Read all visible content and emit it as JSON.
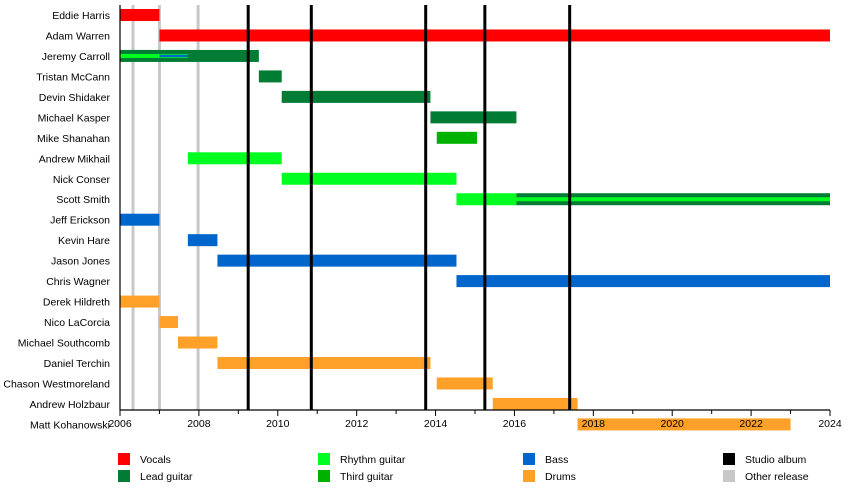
{
  "chart_data": {
    "type": "timeline",
    "x_range": [
      2006,
      2024
    ],
    "x_ticks": [
      2006,
      2008,
      2010,
      2012,
      2014,
      2016,
      2018,
      2020,
      2022,
      2024
    ],
    "colors": {
      "Vocals": "#ff0000",
      "Lead guitar": "#007c35",
      "Rhythm guitar": "#00ff21",
      "Third guitar": "#00b200",
      "Bass": "#0066cc",
      "Drums": "#ffa028",
      "Studio album": "#000000",
      "Other release": "#c8c8c8"
    },
    "members": [
      {
        "name": "Eddie Harris",
        "periods": [
          {
            "role": "Vocals",
            "from": 2006.0,
            "to": 2007.0
          }
        ]
      },
      {
        "name": "Adam Warren",
        "periods": [
          {
            "role": "Vocals",
            "from": 2007.0,
            "to": 2024.0
          }
        ]
      },
      {
        "name": "Jeremy Carroll",
        "periods": [
          {
            "role": "Lead guitar",
            "from": 2006.0,
            "to": 2009.52
          }
        ],
        "stripes": [
          {
            "role": "Rhythm guitar",
            "from": 2006.0,
            "to": 2007.72
          },
          {
            "role": "Bass",
            "from": 2007.0,
            "to": 2007.72
          }
        ]
      },
      {
        "name": "Tristan McCann",
        "periods": [
          {
            "role": "Lead guitar",
            "from": 2009.52,
            "to": 2010.1
          }
        ]
      },
      {
        "name": "Devin Shidaker",
        "periods": [
          {
            "role": "Lead guitar",
            "from": 2010.1,
            "to": 2013.87
          }
        ]
      },
      {
        "name": "Michael Kasper",
        "periods": [
          {
            "role": "Lead guitar",
            "from": 2013.87,
            "to": 2016.05
          }
        ]
      },
      {
        "name": "Mike Shanahan",
        "periods": [
          {
            "role": "Third guitar",
            "from": 2014.03,
            "to": 2015.05
          }
        ]
      },
      {
        "name": "Andrew Mikhail",
        "periods": [
          {
            "role": "Rhythm guitar",
            "from": 2007.72,
            "to": 2010.1
          }
        ]
      },
      {
        "name": "Nick Conser",
        "periods": [
          {
            "role": "Rhythm guitar",
            "from": 2010.1,
            "to": 2014.53
          }
        ]
      },
      {
        "name": "Scott Smith",
        "periods": [
          {
            "role": "Rhythm guitar",
            "from": 2014.53,
            "to": 2016.05
          },
          {
            "role": "Lead guitar",
            "from": 2016.05,
            "to": 2024.0
          }
        ],
        "stripes": [
          {
            "role": "Rhythm guitar",
            "from": 2016.05,
            "to": 2024.0
          }
        ]
      },
      {
        "name": "Jeff Erickson",
        "periods": [
          {
            "role": "Bass",
            "from": 2006.0,
            "to": 2007.0
          }
        ]
      },
      {
        "name": "Kevin Hare",
        "periods": [
          {
            "role": "Bass",
            "from": 2007.72,
            "to": 2008.47
          }
        ]
      },
      {
        "name": "Jason Jones",
        "periods": [
          {
            "role": "Bass",
            "from": 2008.47,
            "to": 2014.53
          }
        ]
      },
      {
        "name": "Chris Wagner",
        "periods": [
          {
            "role": "Bass",
            "from": 2014.53,
            "to": 2024.0
          }
        ]
      },
      {
        "name": "Derek Hildreth",
        "periods": [
          {
            "role": "Drums",
            "from": 2006.0,
            "to": 2007.0
          }
        ]
      },
      {
        "name": "Nico LaCorcia",
        "periods": [
          {
            "role": "Drums",
            "from": 2007.0,
            "to": 2007.47
          }
        ]
      },
      {
        "name": "Michael Southcomb",
        "periods": [
          {
            "role": "Drums",
            "from": 2007.47,
            "to": 2008.47
          }
        ]
      },
      {
        "name": "Daniel Terchin",
        "periods": [
          {
            "role": "Drums",
            "from": 2008.47,
            "to": 2013.87
          }
        ]
      },
      {
        "name": "Chason Westmoreland",
        "periods": [
          {
            "role": "Drums",
            "from": 2014.03,
            "to": 2015.45
          }
        ]
      },
      {
        "name": "Andrew Holzbaur",
        "periods": [
          {
            "role": "Drums",
            "from": 2015.45,
            "to": 2017.6
          }
        ]
      },
      {
        "name": "Matt Kohanowski",
        "periods": [
          {
            "role": "Drums",
            "from": 2017.6,
            "to": 2023.0
          }
        ]
      }
    ],
    "releases": [
      {
        "type": "Other release",
        "date": 2006.33
      },
      {
        "type": "Other release",
        "date": 2007.0
      },
      {
        "type": "Other release",
        "date": 2007.98
      },
      {
        "type": "Studio album",
        "date": 2009.25
      },
      {
        "type": "Studio album",
        "date": 2010.85
      },
      {
        "type": "Studio album",
        "date": 2013.75
      },
      {
        "type": "Studio album",
        "date": 2015.25
      },
      {
        "type": "Studio album",
        "date": 2017.4
      }
    ],
    "legend": [
      "Vocals",
      "Lead guitar",
      "Rhythm guitar",
      "Third guitar",
      "Bass",
      "Drums",
      "Studio album",
      "Other release"
    ],
    "legend_placement": "bottom"
  }
}
